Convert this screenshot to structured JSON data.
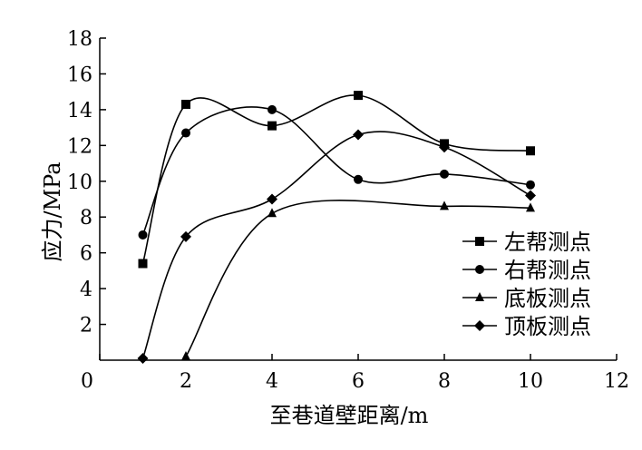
{
  "chart_data": {
    "type": "line",
    "xlabel": "至巷道壁距离/m",
    "ylabel": "应力/MPa",
    "xlim": [
      0,
      12
    ],
    "ylim": [
      0,
      18
    ],
    "xticks": [
      0,
      2,
      4,
      6,
      8,
      10,
      12
    ],
    "yticks": [
      2,
      4,
      6,
      8,
      10,
      12,
      14,
      16,
      18
    ],
    "grid": false,
    "legend_position": "right",
    "series": [
      {
        "name": "左帮测点",
        "marker": "square",
        "color": "#000000",
        "x": [
          1,
          2,
          4,
          6,
          8,
          10
        ],
        "y": [
          5.4,
          14.3,
          13.1,
          14.8,
          12.1,
          11.7
        ]
      },
      {
        "name": "右帮测点",
        "marker": "circle",
        "color": "#000000",
        "x": [
          1,
          2,
          4,
          6,
          8,
          10
        ],
        "y": [
          7.0,
          12.7,
          14.0,
          10.1,
          10.4,
          9.8
        ]
      },
      {
        "name": "底板测点",
        "marker": "triangle",
        "color": "#000000",
        "x": [
          2,
          4,
          8,
          10
        ],
        "y": [
          0.2,
          8.2,
          8.6,
          8.5
        ]
      },
      {
        "name": "顶板测点",
        "marker": "diamond",
        "color": "#000000",
        "x": [
          1,
          2,
          4,
          6,
          8,
          10
        ],
        "y": [
          0.1,
          6.9,
          9.0,
          12.6,
          11.9,
          9.2
        ]
      }
    ]
  }
}
